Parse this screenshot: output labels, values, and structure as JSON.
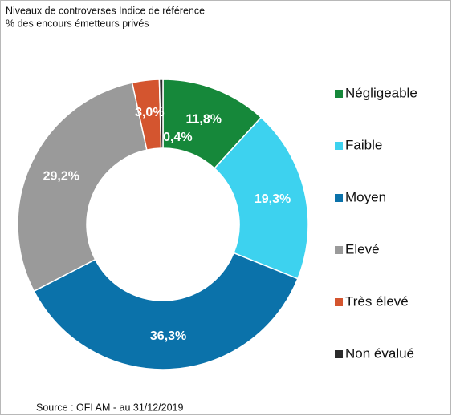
{
  "chart_data": {
    "type": "donut",
    "title": "Niveaux de controverses Indice de référence",
    "subtitle": "% des encours émetteurs privés",
    "source": "Source : OFI AM - au 31/12/2019",
    "categories": [
      "Négligeable",
      "Faible",
      "Moyen",
      "Elevé",
      "Très élevé",
      "Non évalué"
    ],
    "values": [
      11.8,
      19.3,
      36.3,
      29.2,
      3.0,
      0.4
    ],
    "value_labels": [
      "11,8%",
      "19,3%",
      "36,3%",
      "29,2%",
      "3,0%",
      "0,4%"
    ],
    "colors": [
      "#16883a",
      "#3dd2ef",
      "#0b72aa",
      "#9a9a9a",
      "#d4552f",
      "#2b2b2b"
    ],
    "legend": "right"
  }
}
